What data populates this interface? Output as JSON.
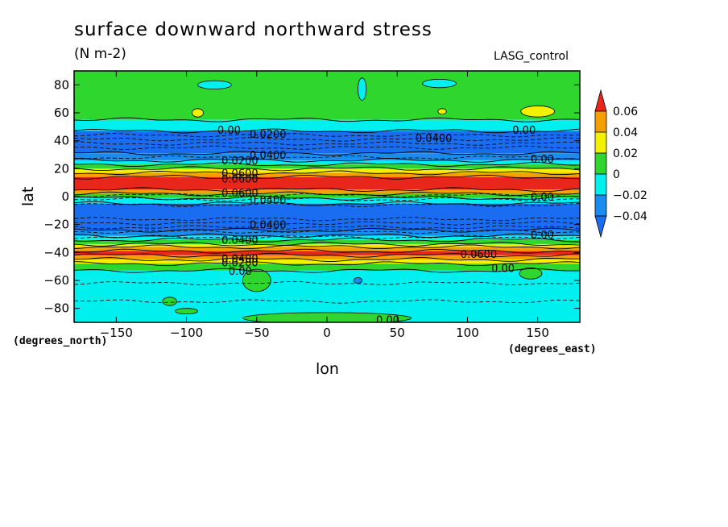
{
  "header": {
    "title": "surface downward northward stress",
    "units": "(N m-2)",
    "run": "LASG_control"
  },
  "axes": {
    "xlabel": "lon",
    "ylabel": "lat",
    "x_units_note": "(degrees_east)",
    "y_units_note": "(degrees_north)"
  },
  "chart_data": {
    "type": "heatmap",
    "title": "surface downward northward stress",
    "subtitle": "(N m-2)",
    "annotation": "LASG_control",
    "xlabel": "lon",
    "ylabel": "lat",
    "xlim": [
      -180,
      180
    ],
    "ylim": [
      -90,
      90
    ],
    "xticks": [
      -150,
      -100,
      -50,
      0,
      50,
      100,
      150
    ],
    "xtick_labels": [
      "−150",
      "−100",
      "−50",
      "0",
      "50",
      "100",
      "150"
    ],
    "yticks": [
      80,
      60,
      40,
      20,
      0,
      -20,
      -40,
      -60,
      -80
    ],
    "ytick_labels": [
      "80",
      "60",
      "40",
      "20",
      "0",
      "−20",
      "−40",
      "−60",
      "−80"
    ],
    "colorbar": {
      "levels": [
        0.06,
        0.04,
        0.02,
        0,
        -0.02,
        -0.04
      ],
      "labels": [
        "0.06",
        "0.04",
        "0.02",
        "0",
        "−0.02",
        "−0.04"
      ],
      "colors": [
        "#e8261c",
        "#f5a000",
        "#f2f200",
        "#2ed62e",
        "#00f0f0",
        "#1a8cf0",
        "#1a6cf0"
      ]
    },
    "bands": [
      {
        "lat_from": 90,
        "lat_to": 55,
        "value_class": "0 to 0.02",
        "color": "#2ed62e"
      },
      {
        "lat_from": 55,
        "lat_to": 47,
        "value_class": "-0.02 to 0",
        "color": "#00f0f0"
      },
      {
        "lat_from": 47,
        "lat_to": 31,
        "value_class": "< -0.04",
        "color": "#1a6cf0"
      },
      {
        "lat_from": 31,
        "lat_to": 26,
        "value_class": "-0.04 to -0.02",
        "color": "#1a8cf0"
      },
      {
        "lat_from": 26,
        "lat_to": 23,
        "value_class": "-0.02 to 0",
        "color": "#00f0f0"
      },
      {
        "lat_from": 23,
        "lat_to": 20,
        "value_class": "0 to 0.02",
        "color": "#2ed62e"
      },
      {
        "lat_from": 20,
        "lat_to": 17,
        "value_class": "0.02 to 0.04",
        "color": "#f2f200"
      },
      {
        "lat_from": 17,
        "lat_to": 14,
        "value_class": "0.04 to 0.06",
        "color": "#f5a000"
      },
      {
        "lat_from": 14,
        "lat_to": 5,
        "value_class": "> 0.06",
        "color": "#e8261c"
      },
      {
        "lat_from": 5,
        "lat_to": 2,
        "value_class": "0.04 to 0.06",
        "color": "#f5a000"
      },
      {
        "lat_from": 2,
        "lat_to": -1,
        "value_class": "0 to 0.02",
        "color": "#2ed62e"
      },
      {
        "lat_from": -1,
        "lat_to": -5,
        "value_class": "-0.02 to 0",
        "color": "#00f0f0"
      },
      {
        "lat_from": -5,
        "lat_to": -24,
        "value_class": "< -0.04",
        "color": "#1a6cf0"
      },
      {
        "lat_from": -24,
        "lat_to": -28,
        "value_class": "-0.04 to -0.02",
        "color": "#1a8cf0"
      },
      {
        "lat_from": -28,
        "lat_to": -31,
        "value_class": "-0.02 to 0",
        "color": "#00f0f0"
      },
      {
        "lat_from": -31,
        "lat_to": -34,
        "value_class": "0 to 0.02",
        "color": "#2ed62e"
      },
      {
        "lat_from": -34,
        "lat_to": -36,
        "value_class": "0.02 to 0.04",
        "color": "#f2f200"
      },
      {
        "lat_from": -36,
        "lat_to": -39,
        "value_class": "0.04 to 0.06",
        "color": "#f5a000"
      },
      {
        "lat_from": -39,
        "lat_to": -42,
        "value_class": "> 0.06",
        "color": "#e8261c"
      },
      {
        "lat_from": -42,
        "lat_to": -45,
        "value_class": "0.04 to 0.06",
        "color": "#f5a000"
      },
      {
        "lat_from": -45,
        "lat_to": -48,
        "value_class": "0.02 to 0.04",
        "color": "#f2f200"
      },
      {
        "lat_from": -48,
        "lat_to": -53,
        "value_class": "0 to 0.02",
        "color": "#2ed62e"
      },
      {
        "lat_from": -53,
        "lat_to": -90,
        "value_class": "-0.02 to 0",
        "color": "#00f0f0"
      }
    ],
    "patches": [
      {
        "lon": -80,
        "lat": 80,
        "rlon": 12,
        "rlat": 3,
        "color": "#00f0f0"
      },
      {
        "lon": 25,
        "lat": 77,
        "rlon": 3,
        "rlat": 8,
        "color": "#00f0f0"
      },
      {
        "lon": 80,
        "lat": 81,
        "rlon": 12,
        "rlat": 3,
        "color": "#00f0f0"
      },
      {
        "lon": 150,
        "lat": 61,
        "rlon": 12,
        "rlat": 4,
        "color": "#f2f200"
      },
      {
        "lon": -92,
        "lat": 60,
        "rlon": 4,
        "rlat": 3,
        "color": "#f2f200"
      },
      {
        "lon": 82,
        "lat": 61,
        "rlon": 3,
        "rlat": 2,
        "color": "#f2f200"
      },
      {
        "lon": -50,
        "lat": -60,
        "rlon": 10,
        "rlat": 8,
        "color": "#2ed62e"
      },
      {
        "lon": 145,
        "lat": -55,
        "rlon": 8,
        "rlat": 4,
        "color": "#2ed62e"
      },
      {
        "lon": -112,
        "lat": -75,
        "rlon": 5,
        "rlat": 3,
        "color": "#2ed62e"
      },
      {
        "lon": -100,
        "lat": -82,
        "rlon": 8,
        "rlat": 2,
        "color": "#2ed62e"
      },
      {
        "lon": 0,
        "lat": -87,
        "rlon": 60,
        "rlat": 4,
        "color": "#2ed62e"
      },
      {
        "lon": 22,
        "lat": -60,
        "rlon": 3,
        "rlat": 2,
        "color": "#1a8cf0"
      }
    ],
    "contour_labels": [
      {
        "text": "0.00",
        "lon": -78,
        "lat": 48
      },
      {
        "text": "0.0200",
        "lon": -55,
        "lat": 45
      },
      {
        "text": "0.0400",
        "lon": 63,
        "lat": 42
      },
      {
        "text": "0.00",
        "lon": 132,
        "lat": 48
      },
      {
        "text": "0.0400",
        "lon": -55,
        "lat": 30
      },
      {
        "text": "0.0200",
        "lon": -75,
        "lat": 26
      },
      {
        "text": "0.00",
        "lon": 145,
        "lat": 27
      },
      {
        "text": "0.0600",
        "lon": -75,
        "lat": 17
      },
      {
        "text": "0.0600",
        "lon": -75,
        "lat": 13
      },
      {
        "text": "0.0600",
        "lon": -75,
        "lat": 3
      },
      {
        "text": "0.0400",
        "lon": -55,
        "lat": -2
      },
      {
        "text": "0.00",
        "lon": 145,
        "lat": 0
      },
      {
        "text": "0.0400",
        "lon": -55,
        "lat": -20
      },
      {
        "text": "0.00",
        "lon": 145,
        "lat": -27
      },
      {
        "text": "0.0400",
        "lon": -75,
        "lat": -31
      },
      {
        "text": "0.0400",
        "lon": -75,
        "lat": -44
      },
      {
        "text": "0.0200",
        "lon": -75,
        "lat": -47
      },
      {
        "text": "0.0600",
        "lon": 95,
        "lat": -41
      },
      {
        "text": "0.00",
        "lon": 117,
        "lat": -51
      },
      {
        "text": "0.00",
        "lon": -70,
        "lat": -53
      },
      {
        "text": "0.00",
        "lon": 35,
        "lat": -88
      }
    ],
    "solid_contour_lats": [
      55,
      47,
      31,
      26,
      23,
      20,
      17,
      14,
      5,
      2,
      -1,
      -5,
      -24,
      -28,
      -31,
      -34,
      -36,
      -39,
      -42,
      -45,
      -48,
      -53
    ],
    "dashed_contour_lats": [
      44,
      41,
      38,
      35,
      28,
      1,
      -2,
      -6,
      -16,
      -19,
      -22,
      -25,
      -29,
      -62,
      -75
    ],
    "grid": false,
    "legend": "right"
  }
}
